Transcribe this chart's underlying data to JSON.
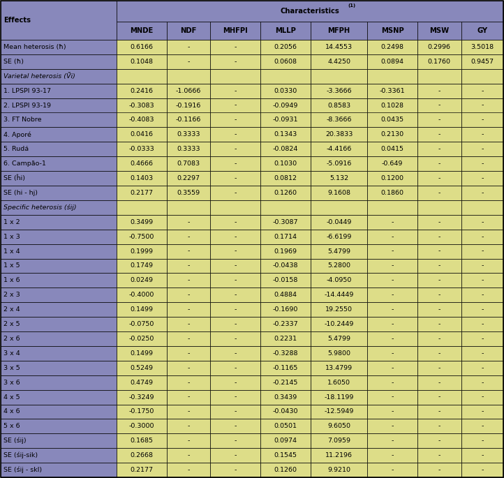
{
  "col_names": [
    "MNDE",
    "NDF",
    "MHFPI",
    "MLLP",
    "MFPH",
    "MSNP",
    "MSW",
    "GY"
  ],
  "rows": [
    [
      "Mean heterosis (ħ)",
      "0.6166",
      "-",
      "-",
      "0.2056",
      "14.4553",
      "0.2498",
      "0.2996",
      "3.5018"
    ],
    [
      "SE (ħ)",
      "0.1048",
      "-",
      "-",
      "0.0608",
      "4.4250",
      "0.0894",
      "0.1760",
      "0.9457"
    ],
    [
      "Varietal heterosis (Ṽi)",
      "",
      "",
      "",
      "",
      "",
      "",
      "",
      ""
    ],
    [
      "1. LPSPI 93-17",
      "0.2416",
      "-1.0666",
      "-",
      "0.0330",
      "-3.3666",
      "-0.3361",
      "-",
      "-"
    ],
    [
      "2. LPSPI 93-19",
      "-0.3083",
      "-0.1916",
      "-",
      "-0.0949",
      "0.8583",
      "0.1028",
      "-",
      "-"
    ],
    [
      "3. FT Nobre",
      "-0.4083",
      "-0.1166",
      "-",
      "-0.0931",
      "-8.3666",
      "0.0435",
      "-",
      "-"
    ],
    [
      "4. Aporé",
      "0.0416",
      "0.3333",
      "-",
      "0.1343",
      "20.3833",
      "0.2130",
      "-",
      "-"
    ],
    [
      "5. Rudá",
      "-0.0333",
      "0.3333",
      "-",
      "-0.0824",
      "-4.4166",
      "0.0415",
      "-",
      "-"
    ],
    [
      "6. Campão-1",
      "0.4666",
      "0.7083",
      "-",
      "0.1030",
      "-5.0916",
      "-0.649",
      "-",
      "-"
    ],
    [
      "SE (ĥi)",
      "0.1403",
      "0.2297",
      "-",
      "0.0812",
      "5.132",
      "0.1200",
      "-",
      "-"
    ],
    [
      "SE (hi - hj)",
      "0.2177",
      "0.3559",
      "-",
      "0.1260",
      "9.1608",
      "0.1860",
      "-",
      "-"
    ],
    [
      "Specific heterosis (śij)",
      "",
      "",
      "",
      "",
      "",
      "",
      "",
      ""
    ],
    [
      "1 x 2",
      "0.3499",
      "-",
      "-",
      "-0.3087",
      "-0.0449",
      "-",
      "-",
      "-"
    ],
    [
      "1 x 3",
      "-0.7500",
      "-",
      "-",
      "0.1714",
      "-6.6199",
      "-",
      "-",
      "-"
    ],
    [
      "1 x 4",
      "0.1999",
      "-",
      "-",
      "0.1969",
      "5.4799",
      "-",
      "-",
      "-"
    ],
    [
      "1 x 5",
      "0.1749",
      "-",
      "-",
      "-0.0438",
      "5.2800",
      "-",
      "-",
      "-"
    ],
    [
      "1 x 6",
      "0.0249",
      "-",
      "-",
      "-0.0158",
      "-4.0950",
      "-",
      "-",
      "-"
    ],
    [
      "2 x 3",
      "-0.4000",
      "-",
      "-",
      "0.4884",
      "-14.4449",
      "-",
      "-",
      "-"
    ],
    [
      "2 x 4",
      "0.1499",
      "-",
      "-",
      "-0.1690",
      "19.2550",
      "-",
      "-",
      "-"
    ],
    [
      "2 x 5",
      "-0.0750",
      "-",
      "-",
      "-0.2337",
      "-10.2449",
      "-",
      "-",
      "-"
    ],
    [
      "2 x 6",
      "-0.0250",
      "-",
      "-",
      "0.2231",
      "5.4799",
      "-",
      "-",
      "-"
    ],
    [
      "3 x 4",
      "0.1499",
      "-",
      "-",
      "-0.3288",
      "5.9800",
      "-",
      "-",
      "-"
    ],
    [
      "3 x 5",
      "0.5249",
      "-",
      "-",
      "-0.1165",
      "13.4799",
      "-",
      "-",
      "-"
    ],
    [
      "3 x 6",
      "0.4749",
      "-",
      "-",
      "-0.2145",
      "1.6050",
      "-",
      "-",
      "-"
    ],
    [
      "4 x 5",
      "-0.3249",
      "-",
      "-",
      "0.3439",
      "-18.1199",
      "-",
      "-",
      "-"
    ],
    [
      "4 x 6",
      "-0.1750",
      "-",
      "-",
      "-0.0430",
      "-12.5949",
      "-",
      "-",
      "-"
    ],
    [
      "5 x 6",
      "-0.3000",
      "-",
      "-",
      "0.0501",
      "9.6050",
      "-",
      "-",
      "-"
    ],
    [
      "SE (śij)",
      "0.1685",
      "-",
      "-",
      "0.0974",
      "7.0959",
      "-",
      "-",
      "-"
    ],
    [
      "SE (śij-sik)",
      "0.2668",
      "-",
      "-",
      "0.1545",
      "11.2196",
      "-",
      "-",
      "-"
    ],
    [
      "SE (śij - skl)",
      "0.2177",
      "-",
      "-",
      "0.1260",
      "9.9210",
      "-",
      "-",
      "-"
    ]
  ],
  "blue_color": "#8888BB",
  "yellow_color": "#DDDD88",
  "border_color": "#000000",
  "text_fontsize": 6.8,
  "header_fontsize": 7.2,
  "fig_width": 7.22,
  "fig_height": 6.85,
  "dpi": 100
}
